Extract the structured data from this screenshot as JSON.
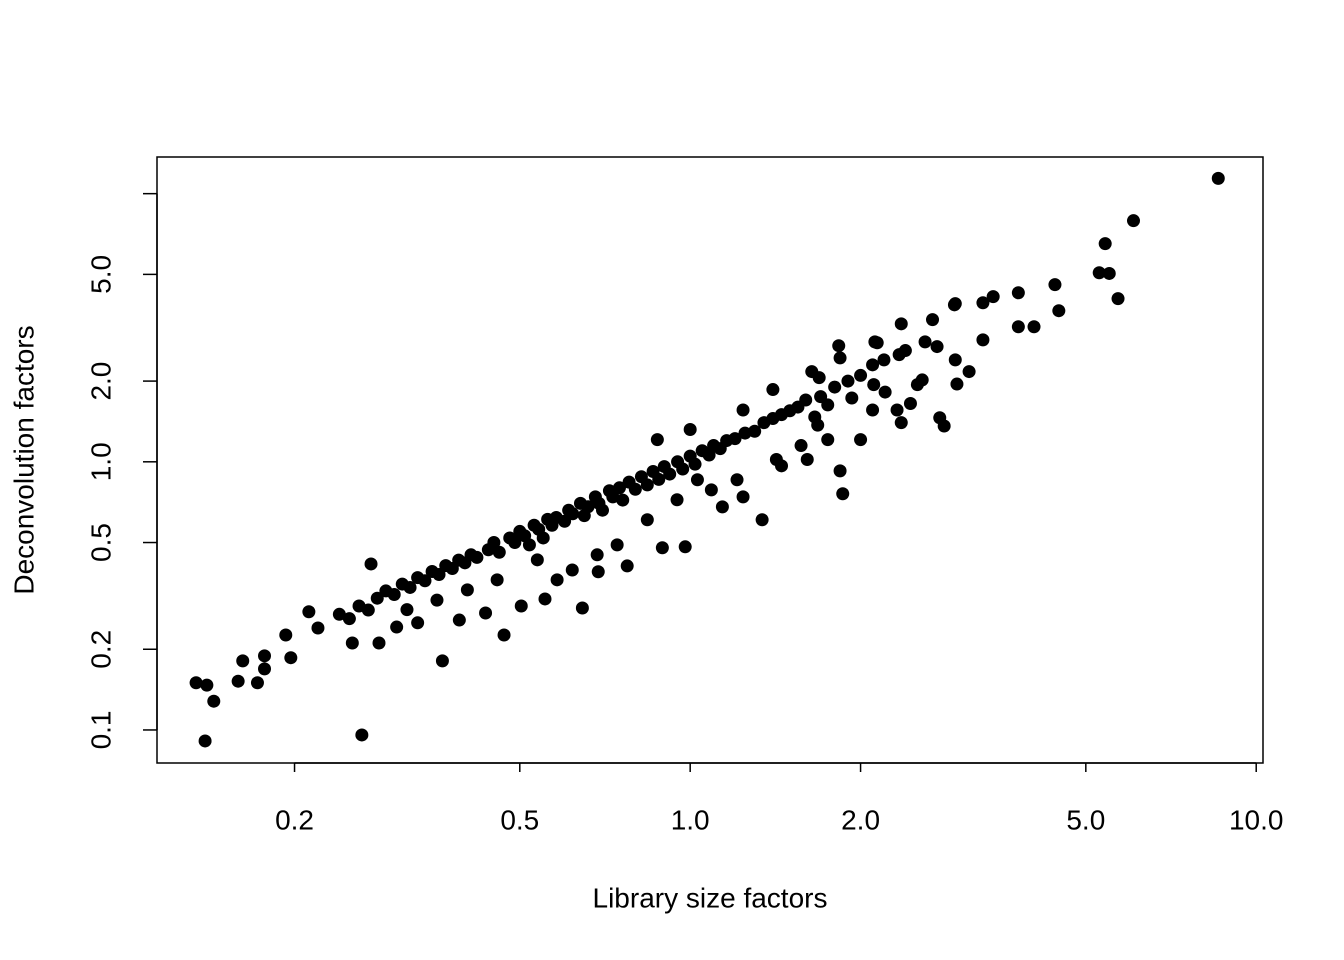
{
  "chart_data": {
    "type": "scatter",
    "xlabel": "Library size factors",
    "ylabel": "Deconvolution factors",
    "xlog": true,
    "ylog": true,
    "color": "#000000",
    "xlim": [
      0.1143,
      10.28
    ],
    "ylim": [
      0.0753,
      13.7
    ],
    "xticks": [
      0.2,
      0.5,
      {
        "value": 1,
        "label": "1.0"
      },
      {
        "value": 2,
        "label": "2.0"
      },
      {
        "value": 5,
        "label": "5.0"
      },
      {
        "value": 10,
        "label": "10.0"
      }
    ],
    "yticks": [
      0.1,
      0.2,
      0.5,
      {
        "value": 1,
        "label": "1.0"
      },
      {
        "value": 2,
        "label": "2.0"
      },
      {
        "value": 5,
        "label": "5.0"
      },
      {
        "value": 10,
        "label": null
      }
    ],
    "x": [
      8.57,
      6.07,
      5.41,
      5.28,
      5.5,
      5.7,
      4.41,
      4.48,
      3.8,
      3.8,
      4.05,
      3.43,
      3.29,
      3.29,
      2.93,
      3.11,
      2.81,
      2.76,
      2.36,
      2.36,
      2.45,
      2.57,
      2.14,
      2.11,
      2.1,
      2.0,
      1.86,
      1.84,
      1.83,
      1.69,
      1.66,
      1.57,
      1.45,
      1.34,
      1.24,
      1.14,
      0.98,
      0.893,
      0.774,
      0.688,
      0.645,
      0.554,
      0.503,
      0.469,
      0.365,
      0.263,
      0.139,
      0.134,
      0.144,
      0.14,
      0.159,
      0.172,
      0.162,
      0.177,
      0.177,
      0.193,
      0.197,
      0.212,
      0.273,
      0.282,
      0.253,
      0.303,
      0.33,
      0.391,
      0.435,
      0.875,
      1.0,
      1.24,
      1.4,
      1.64,
      1.84,
      2.12,
      2.68,
      2.94,
      2.34,
      2.73,
      2.94,
      2.96,
      2.52,
      2.21,
      2.32,
      1.93,
      1.75,
      1.68,
      1.75,
      1.61,
      1.42,
      1.21,
      1.09,
      1.03,
      0.948,
      0.84,
      0.743,
      0.685,
      0.619,
      0.582,
      0.537,
      0.456,
      0.404,
      0.357,
      0.316,
      0.22,
      0.24,
      0.25,
      0.26,
      0.27,
      0.28,
      0.29,
      0.3,
      0.31,
      0.32,
      0.33,
      0.34,
      0.35,
      0.36,
      0.37,
      0.38,
      0.39,
      0.4,
      0.41,
      0.42,
      0.44,
      0.45,
      0.46,
      0.48,
      0.49,
      0.5,
      0.51,
      0.52,
      0.53,
      0.54,
      0.55,
      0.56,
      0.57,
      0.58,
      0.6,
      0.61,
      0.62,
      0.64,
      0.65,
      0.66,
      0.68,
      0.69,
      0.7,
      0.72,
      0.73,
      0.75,
      0.76,
      0.78,
      0.8,
      0.82,
      0.84,
      0.86,
      0.88,
      0.9,
      0.92,
      0.95,
      0.97,
      1.0,
      1.02,
      1.05,
      1.08,
      1.1,
      1.13,
      1.16,
      1.2,
      1.25,
      1.3,
      1.35,
      1.4,
      1.45,
      1.5,
      1.55,
      1.6,
      1.7,
      1.8,
      1.9,
      2.0,
      2.1,
      2.2,
      2.4,
      2.6
    ],
    "values": [
      11.4,
      7.93,
      6.51,
      5.07,
      5.04,
      4.06,
      4.58,
      3.66,
      4.27,
      3.19,
      3.19,
      4.13,
      3.92,
      2.85,
      3.85,
      2.17,
      1.36,
      1.46,
      3.27,
      1.4,
      1.65,
      2.02,
      2.78,
      1.94,
      1.56,
      1.21,
      0.76,
      0.925,
      2.71,
      2.06,
      1.47,
      1.15,
      0.966,
      0.608,
      0.74,
      0.679,
      0.482,
      0.478,
      0.409,
      0.389,
      0.285,
      0.308,
      0.29,
      0.226,
      0.181,
      0.0958,
      0.091,
      0.15,
      0.128,
      0.147,
      0.152,
      0.15,
      0.181,
      0.189,
      0.169,
      0.226,
      0.186,
      0.276,
      0.416,
      0.211,
      0.211,
      0.242,
      0.251,
      0.257,
      0.273,
      1.21,
      1.32,
      1.56,
      1.86,
      2.17,
      2.44,
      2.8,
      3.39,
      3.89,
      2.51,
      2.69,
      2.4,
      1.95,
      1.94,
      1.82,
      1.56,
      1.73,
      1.63,
      1.37,
      1.21,
      1.02,
      1.02,
      0.857,
      0.786,
      0.857,
      0.722,
      0.608,
      0.49,
      0.45,
      0.395,
      0.363,
      0.431,
      0.363,
      0.333,
      0.305,
      0.281,
      0.24,
      0.27,
      0.26,
      0.29,
      0.28,
      0.31,
      0.33,
      0.32,
      0.35,
      0.34,
      0.37,
      0.36,
      0.39,
      0.38,
      0.41,
      0.4,
      0.43,
      0.42,
      0.45,
      0.44,
      0.47,
      0.5,
      0.46,
      0.52,
      0.5,
      0.55,
      0.53,
      0.49,
      0.58,
      0.56,
      0.52,
      0.61,
      0.58,
      0.62,
      0.6,
      0.66,
      0.64,
      0.7,
      0.63,
      0.68,
      0.74,
      0.7,
      0.66,
      0.78,
      0.74,
      0.8,
      0.72,
      0.84,
      0.79,
      0.88,
      0.82,
      0.92,
      0.86,
      0.96,
      0.9,
      1.0,
      0.94,
      1.05,
      0.98,
      1.1,
      1.06,
      1.15,
      1.12,
      1.2,
      1.22,
      1.28,
      1.3,
      1.4,
      1.45,
      1.5,
      1.55,
      1.6,
      1.7,
      1.75,
      1.9,
      2.0,
      2.1,
      2.3,
      2.4,
      2.6,
      2.8
    ]
  }
}
